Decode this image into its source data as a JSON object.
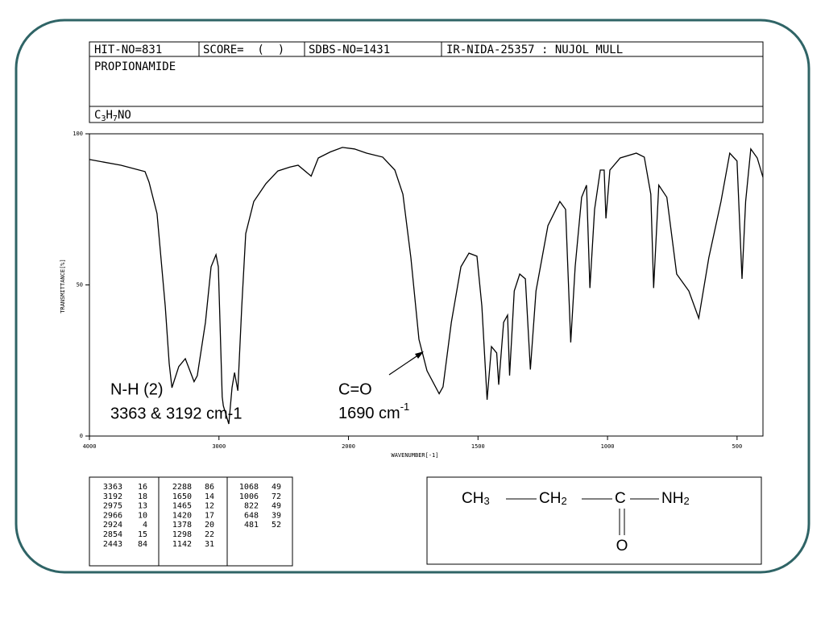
{
  "header": {
    "hit_no": "HIT-NO=831",
    "score": "SCORE=  (  )",
    "sdbs_no": "SDBS-NO=1431",
    "method": "IR-NIDA-25357 : NUJOL MULL",
    "name": "PROPIONAMIDE",
    "formula": [
      "C",
      "3",
      "H",
      "7",
      "NO"
    ]
  },
  "chart_data": {
    "type": "line",
    "color": "#000000",
    "x_label": "WAVENUMBER[-1]",
    "y_label": "TRANSMITTANCE[%]",
    "xlim": [
      4000,
      400
    ],
    "x_scale_break": 2000,
    "x_scale_factor": 2,
    "xticks": [
      4000,
      3000,
      2000,
      1500,
      1000,
      500
    ],
    "ylim": [
      0,
      100
    ],
    "yticks": [
      0,
      50,
      100
    ],
    "x": [
      4000,
      3757,
      3571,
      3540,
      3478,
      3415,
      3384,
      3363,
      3310,
      3260,
      3192,
      3167,
      3104,
      3061,
      3023,
      3005,
      2975,
      2966,
      2924,
      2899,
      2880,
      2854,
      2824,
      2793,
      2731,
      2638,
      2545,
      2451,
      2389,
      2288,
      2233,
      2140,
      2047,
      1977,
      1930,
      1868,
      1821,
      1790,
      1759,
      1728,
      1697,
      1650,
      1635,
      1603,
      1566,
      1535,
      1504,
      1485,
      1465,
      1448,
      1428,
      1420,
      1401,
      1386,
      1378,
      1360,
      1339,
      1317,
      1298,
      1276,
      1230,
      1184,
      1162,
      1142,
      1125,
      1100,
      1081,
      1068,
      1050,
      1028,
      1013,
      1006,
      991,
      951,
      889,
      858,
      833,
      822,
      802,
      771,
      733,
      686,
      648,
      609,
      562,
      528,
      500,
      481,
      467,
      447,
      422,
      400
    ],
    "values": [
      91.5,
      89.6,
      87.5,
      84,
      73.6,
      43,
      24,
      16,
      23,
      25.6,
      18,
      20,
      37.6,
      56,
      60,
      56,
      13,
      10,
      4,
      16,
      21,
      15,
      43,
      67,
      77.6,
      83.5,
      87.7,
      89,
      89.6,
      86,
      92,
      94,
      95.5,
      95,
      93.6,
      92.3,
      88,
      80,
      59,
      32,
      21.6,
      14,
      16.3,
      37.6,
      56,
      60.5,
      59.5,
      43,
      12,
      29.6,
      27.5,
      17,
      37.6,
      40,
      20,
      48,
      53.6,
      52,
      22,
      48,
      69.6,
      77.6,
      75,
      31,
      56,
      79,
      83,
      49,
      75,
      88,
      88,
      72,
      88,
      92,
      93.6,
      92.3,
      80,
      49,
      83,
      79,
      53.6,
      48,
      39,
      59,
      77.6,
      93.6,
      91,
      52,
      77.6,
      95,
      92,
      85.6
    ]
  },
  "annotations": [
    {
      "lines": [
        "N-H (2)",
        "3363 & 3192 cm-1"
      ]
    },
    {
      "lines": [
        "C=O",
        "1690 cm"
      ],
      "superscript": "-1"
    }
  ],
  "peak_table": [
    [
      [
        3363,
        16
      ],
      [
        3192,
        18
      ],
      [
        2975,
        13
      ],
      [
        2966,
        10
      ],
      [
        2924,
        4
      ],
      [
        2854,
        15
      ],
      [
        2443,
        84
      ]
    ],
    [
      [
        2288,
        86
      ],
      [
        1650,
        14
      ],
      [
        1465,
        12
      ],
      [
        1420,
        17
      ],
      [
        1378,
        20
      ],
      [
        1298,
        22
      ],
      [
        1142,
        31
      ]
    ],
    [
      [
        1068,
        49
      ],
      [
        1006,
        72
      ],
      [
        822,
        49
      ],
      [
        648,
        39
      ],
      [
        481,
        52
      ]
    ]
  ],
  "structure": {
    "groups": [
      {
        "atom": "CH",
        "sub": "3"
      },
      {
        "atom": "CH",
        "sub": "2"
      },
      {
        "atom": "C"
      },
      {
        "atom": "NH",
        "sub": "2"
      }
    ],
    "oxygen": "O"
  }
}
